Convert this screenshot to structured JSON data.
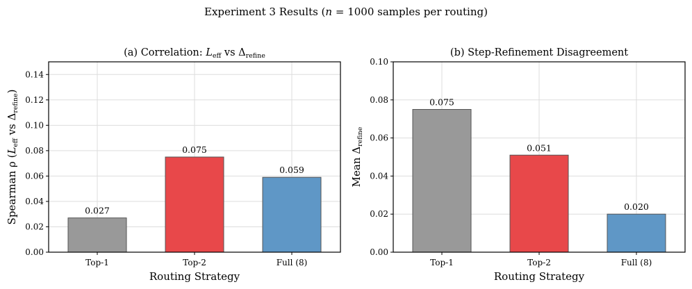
{
  "figure": {
    "suptitle_prefix": "Experiment 3 Results (",
    "suptitle_var": "n",
    "suptitle_suffix": " = 1000 samples per routing)"
  },
  "chart_data": [
    {
      "type": "bar",
      "title": {
        "prefix": "(a) Correlation: ",
        "var1": "L",
        "var1_sub": "eff",
        "mid": " vs Δ",
        "var2_sub": "refine"
      },
      "xlabel": "Routing Strategy",
      "ylabel": {
        "prefix": "Spearman ρ (",
        "var1": "L",
        "var1_sub": "eff",
        "mid": " vs Δ",
        "var2_sub": "refine",
        "suffix": ")"
      },
      "categories": [
        "Top-1",
        "Top-2",
        "Full (8)"
      ],
      "values": [
        0.027,
        0.075,
        0.059
      ],
      "value_labels": [
        "0.027",
        "0.075",
        "0.059"
      ],
      "colors": [
        "#999999",
        "#e8484a",
        "#5f97c6"
      ],
      "ylim": [
        0,
        0.15
      ],
      "yticks": [
        "0.00",
        "0.02",
        "0.04",
        "0.06",
        "0.08",
        "0.10",
        "0.12",
        "0.14"
      ],
      "ytick_values": [
        0,
        0.02,
        0.04,
        0.06,
        0.08,
        0.1,
        0.12,
        0.14
      ],
      "grid": true
    },
    {
      "type": "bar",
      "title": {
        "text": "(b) Step-Refinement Disagreement"
      },
      "xlabel": "Routing Strategy",
      "ylabel": {
        "prefix": "Mean Δ",
        "sub": "refine"
      },
      "categories": [
        "Top-1",
        "Top-2",
        "Full (8)"
      ],
      "values": [
        0.075,
        0.051,
        0.02
      ],
      "value_labels": [
        "0.075",
        "0.051",
        "0.020"
      ],
      "colors": [
        "#999999",
        "#e8484a",
        "#5f97c6"
      ],
      "ylim": [
        0,
        0.1
      ],
      "yticks": [
        "0.00",
        "0.02",
        "0.04",
        "0.06",
        "0.08",
        "0.10"
      ],
      "ytick_values": [
        0,
        0.02,
        0.04,
        0.06,
        0.08,
        0.1
      ],
      "grid": true
    }
  ]
}
